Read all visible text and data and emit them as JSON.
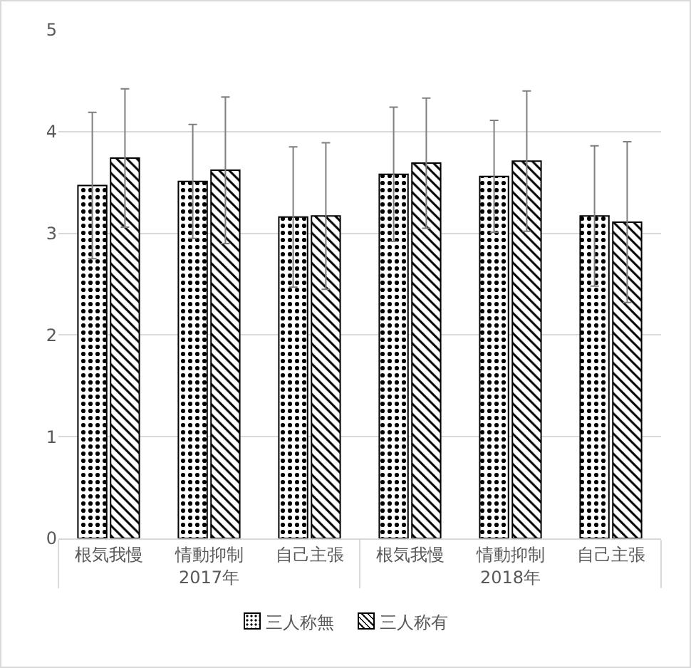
{
  "chart_data": {
    "type": "bar",
    "categories": [
      "根気我慢",
      "情動抑制",
      "自己主張",
      "根気我慢",
      "情動抑制",
      "自己主張"
    ],
    "annotations": [
      "2017年",
      "2018年"
    ],
    "series": [
      {
        "name": "三人称無",
        "color": "#000000",
        "values": [
          3.47,
          3.51,
          3.16,
          3.58,
          3.56,
          3.17
        ],
        "errors": [
          0.72,
          0.56,
          0.69,
          0.66,
          0.55,
          0.69
        ]
      },
      {
        "name": "三人称有",
        "color": "#000000",
        "values": [
          3.74,
          3.62,
          3.17,
          3.69,
          3.71,
          3.11
        ],
        "errors": [
          0.68,
          0.72,
          0.72,
          0.64,
          0.69,
          0.79
        ]
      }
    ],
    "ylim": [
      0,
      5
    ],
    "yticks": [
      0,
      1,
      2,
      3,
      4,
      5
    ],
    "grid": "y",
    "legend": "bottom"
  }
}
